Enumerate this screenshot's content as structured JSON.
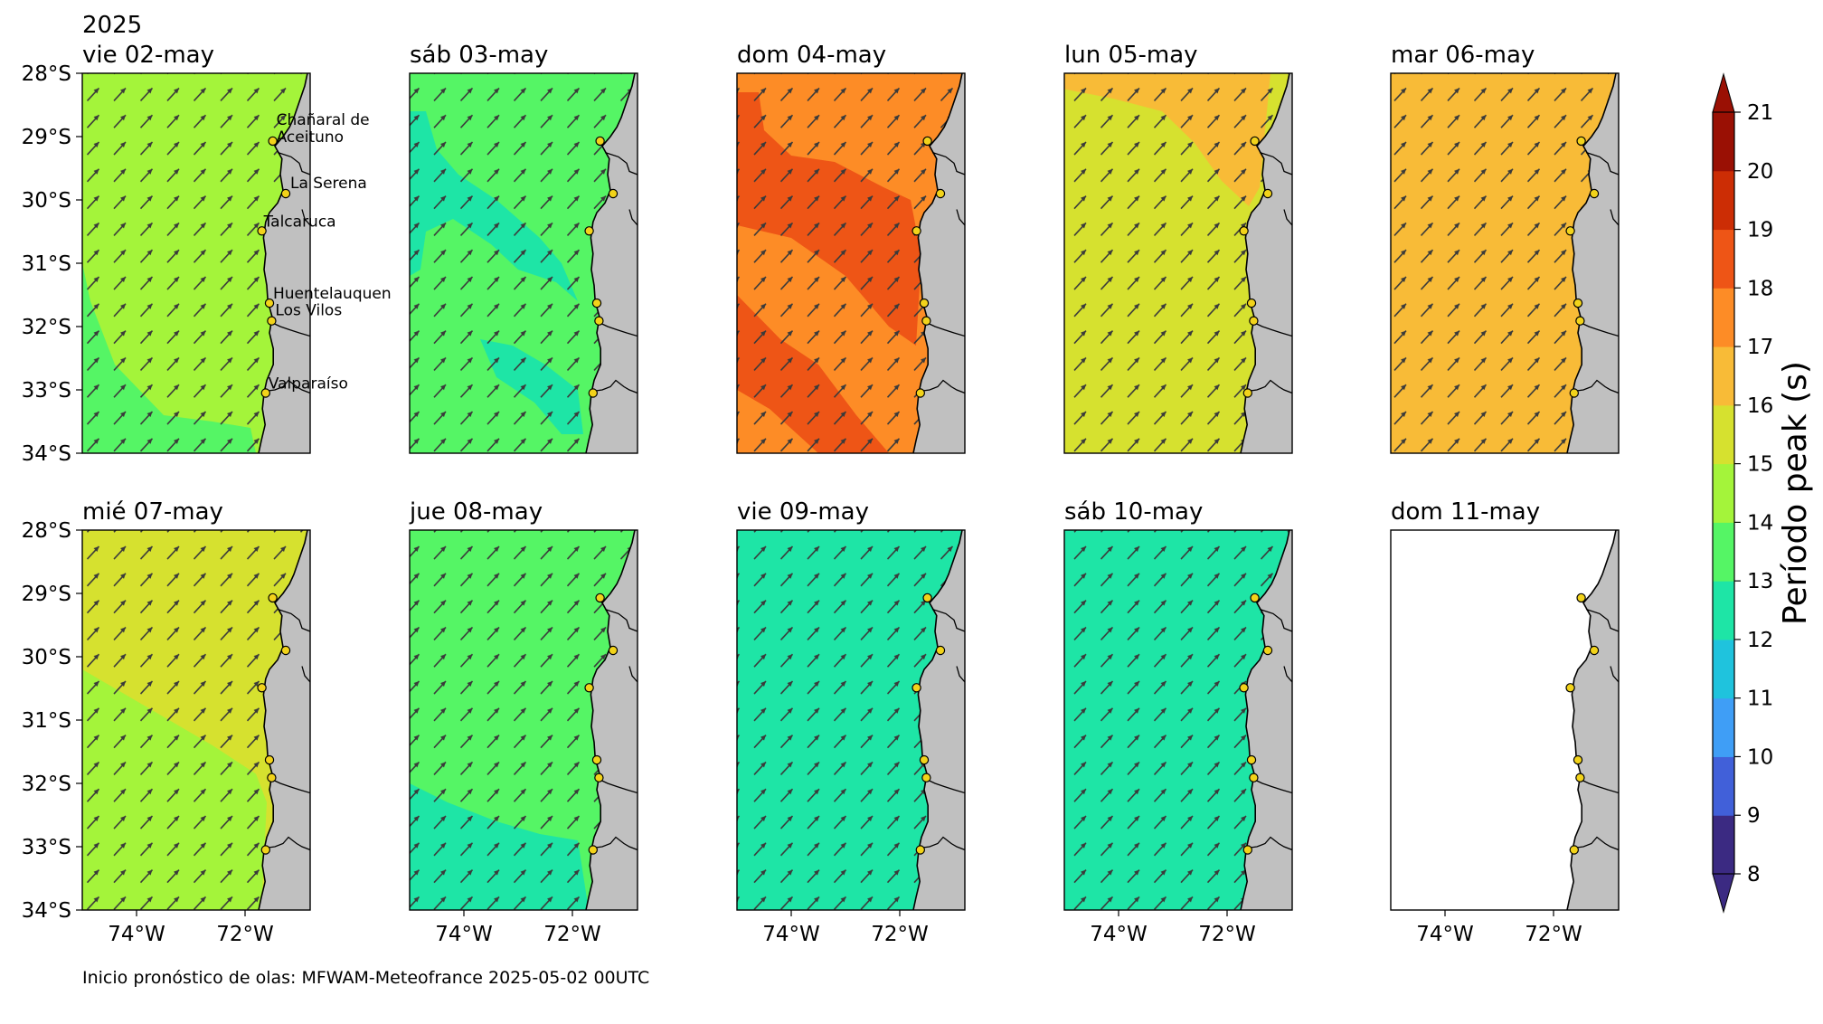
{
  "figure": {
    "year": "2025",
    "source_note": "Inicio pronóstico de olas: MFWAM-Meteofrance 2025-05-02 00UTC"
  },
  "chart_data": {
    "type": "heatmap",
    "description_variable": "Período peak (s)",
    "grid": false,
    "lat_ticks": [
      "28°S",
      "29°S",
      "30°S",
      "31°S",
      "32°S",
      "33°S",
      "34°S"
    ],
    "lon_ticks": [
      "74°W",
      "72°W"
    ],
    "lat_range": [
      -34,
      -28
    ],
    "lon_range": [
      -75.0,
      -70.8
    ],
    "colorbar": {
      "label": "Período peak (s)",
      "ticks": [
        "8",
        "9",
        "10",
        "11",
        "12",
        "13",
        "14",
        "15",
        "16",
        "17",
        "18",
        "19",
        "20",
        "21"
      ],
      "levels": [
        8,
        9,
        10,
        11,
        12,
        13,
        14,
        15,
        16,
        17,
        18,
        19,
        20,
        21
      ],
      "colors": [
        "#3b2a82",
        "#4160d9",
        "#3f9ef6",
        "#1fc3dd",
        "#1ee5a6",
        "#55f565",
        "#a4f43a",
        "#d6e12f",
        "#f8bb37",
        "#fd8c26",
        "#ee5516",
        "#cc2d05",
        "#9a1004"
      ],
      "extend": "both"
    },
    "cities": [
      {
        "name": "Chañaral de Aceituno",
        "label_lines": [
          "Chañaral de",
          "Aceituno"
        ],
        "lat": -29.07,
        "lon": -71.49
      },
      {
        "name": "La Serena",
        "label_lines": [
          "La Serena"
        ],
        "lat": -29.9,
        "lon": -71.25
      },
      {
        "name": "Talcaruca",
        "label_lines": [
          "Talcaruca"
        ],
        "lat": -30.49,
        "lon": -71.69
      },
      {
        "name": "Huentelauquen",
        "label_lines": [
          "Huentelauquen"
        ],
        "lat": -31.63,
        "lon": -71.55
      },
      {
        "name": "Los Vilos",
        "label_lines": [
          "Los Vilos"
        ],
        "lat": -31.91,
        "lon": -71.51
      },
      {
        "name": "Valparaíso",
        "label_lines": [
          "Valparaíso"
        ],
        "lat": -33.05,
        "lon": -71.62
      }
    ],
    "panels": [
      {
        "date": "vie 02-may",
        "base_period": 14.5,
        "patches": [
          {
            "period": 13.5,
            "shape": "south-west lobe"
          }
        ]
      },
      {
        "date": "sáb 03-may",
        "base_period": 13.5,
        "patches": [
          {
            "period": 12.5,
            "shape": "diagonal band and south-east patch"
          }
        ]
      },
      {
        "date": "dom 04-may",
        "base_period": 17.5,
        "patches": [
          {
            "period": 18.5,
            "shape": "two diagonal bands"
          }
        ]
      },
      {
        "date": "lun 05-may",
        "base_period": 15.5,
        "patches": [
          {
            "period": 16.5,
            "shape": "north-east corner"
          }
        ]
      },
      {
        "date": "mar 06-may",
        "base_period": 16.5,
        "patches": []
      },
      {
        "date": "mié 07-may",
        "base_period": 15.5,
        "patches": [
          {
            "period": 14.5,
            "shape": "southern half"
          }
        ]
      },
      {
        "date": "jue 08-may",
        "base_period": 13.5,
        "patches": [
          {
            "period": 12.5,
            "shape": "southern band"
          }
        ]
      },
      {
        "date": "vie 09-may",
        "base_period": 12.5,
        "patches": []
      },
      {
        "date": "sáb 10-may",
        "base_period": 12.5,
        "patches": []
      },
      {
        "date": "dom 11-may",
        "base_period": null,
        "patches": []
      }
    ],
    "arrows": {
      "direction_from": "south-west",
      "meaning": "peak wave direction"
    }
  }
}
